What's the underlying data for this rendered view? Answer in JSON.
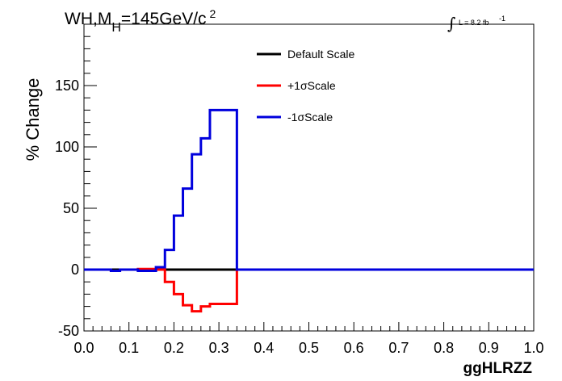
{
  "chart_data": {
    "type": "line",
    "title_parts": {
      "main": "WH,M",
      "sub": "H",
      "rest": "=145GeV/c",
      "sup": "2"
    },
    "lumi": {
      "integral": "∫",
      "text": "L = 8.2 fb",
      "sup": "-1"
    },
    "xlabel": "ggHLRZZ",
    "ylabel": "% Change",
    "xlim": [
      0.0,
      1.0
    ],
    "ylim": [
      -50,
      200
    ],
    "xticks": [
      "0.0",
      "0.1",
      "0.2",
      "0.3",
      "0.4",
      "0.5",
      "0.6",
      "0.7",
      "0.8",
      "0.9",
      "1.0"
    ],
    "yticks": [
      "-50",
      "0",
      "50",
      "100",
      "150"
    ],
    "grid": false,
    "legend_position": "top-center",
    "bin_width": 0.02,
    "x": [
      0.0,
      0.02,
      0.04,
      0.06,
      0.08,
      0.1,
      0.12,
      0.14,
      0.16,
      0.18,
      0.2,
      0.22,
      0.24,
      0.26,
      0.28,
      0.3,
      0.32,
      0.34,
      0.36,
      0.38,
      0.4,
      0.42,
      0.44,
      0.46,
      0.48,
      0.5,
      0.52,
      0.54,
      0.56,
      0.58,
      0.6,
      0.62,
      0.64,
      0.66,
      0.68,
      0.7,
      0.72,
      0.74,
      0.76,
      0.78,
      0.8,
      0.82,
      0.84,
      0.86,
      0.88,
      0.9,
      0.92,
      0.94,
      0.96,
      0.98
    ],
    "series": [
      {
        "name": "Default Scale",
        "color": "#000000",
        "values": [
          0,
          0,
          0,
          0,
          0,
          0,
          0,
          0,
          0,
          0,
          0,
          0,
          0,
          0,
          0,
          0,
          0,
          0,
          0,
          0,
          0,
          0,
          0,
          0,
          0,
          0,
          0,
          0,
          0,
          0,
          0,
          0,
          0,
          0,
          0,
          0,
          0,
          0,
          0,
          0,
          0,
          0,
          0,
          0,
          0,
          0,
          0,
          0,
          0,
          0
        ]
      },
      {
        "name": "+1σScale",
        "color": "#ff0000",
        "values": [
          0,
          0,
          0,
          -1,
          0,
          0,
          0.5,
          0.5,
          0,
          -10,
          -20,
          -29,
          -34,
          -30,
          -28,
          -28,
          -28,
          0,
          0,
          0,
          0,
          0,
          0,
          0,
          0,
          0,
          0,
          0,
          0,
          0,
          0,
          0,
          0,
          0,
          0,
          0,
          0,
          0,
          0,
          0,
          0,
          0,
          0,
          0,
          0,
          0,
          0,
          0,
          0,
          0
        ]
      },
      {
        "name": "-1σScale",
        "color": "#0000dd",
        "values": [
          0,
          0,
          0,
          -1,
          0,
          0,
          -1,
          -1,
          2,
          16,
          44,
          66,
          94,
          107,
          130,
          130,
          130,
          0,
          0,
          0,
          0,
          0,
          0,
          0,
          0,
          0,
          0,
          0,
          0,
          0,
          0,
          0,
          0,
          0,
          0,
          0,
          0,
          0,
          0,
          0,
          0,
          0,
          0,
          0,
          0,
          0,
          0,
          0,
          0,
          0
        ]
      }
    ]
  }
}
